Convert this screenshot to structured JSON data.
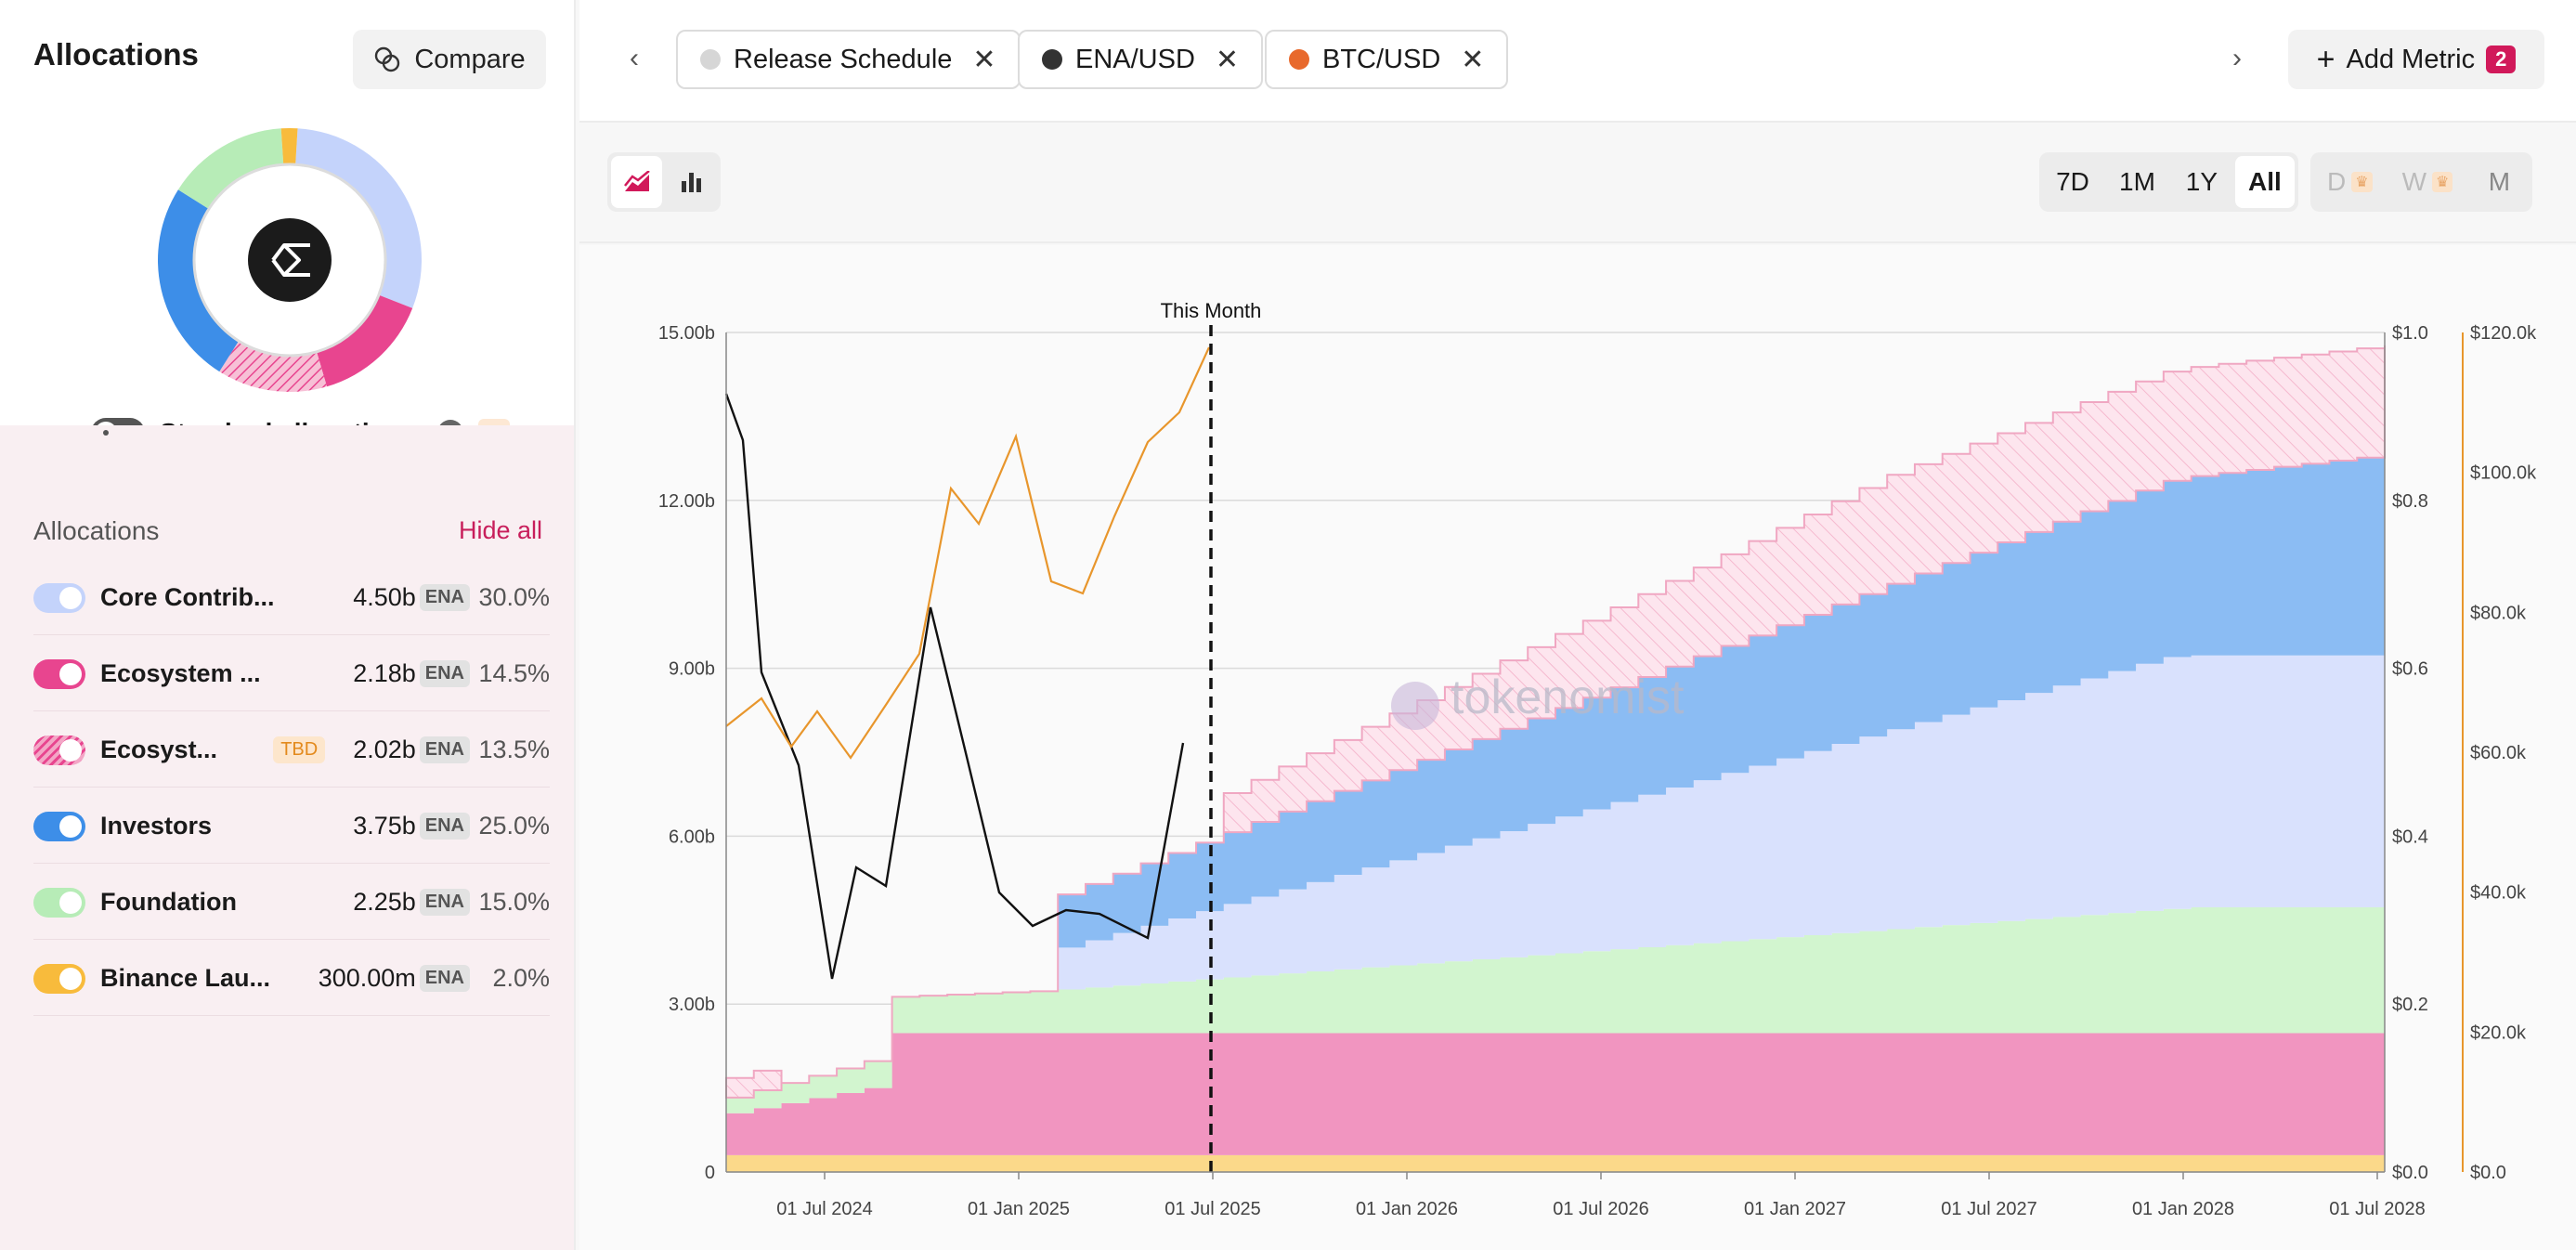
{
  "sidebar": {
    "title": "Allocations",
    "compare_label": "Compare",
    "standard_allocations_label": "Standard allocations",
    "list_title": "Allocations",
    "hide_all_label": "Hide all",
    "items": [
      {
        "name": "Core Contrib...",
        "amount": "4.50b",
        "unit": "ENA",
        "pct": "30.0%",
        "color": "#c4d3fb",
        "tbd": ""
      },
      {
        "name": "Ecosystem ...",
        "amount": "2.18b",
        "unit": "ENA",
        "pct": "14.5%",
        "color": "#e8458f",
        "tbd": ""
      },
      {
        "name": "Ecosyst...",
        "amount": "2.02b",
        "unit": "ENA",
        "pct": "13.5%",
        "color": "#f3a6c6",
        "tbd": "TBD"
      },
      {
        "name": "Investors",
        "amount": "3.75b",
        "unit": "ENA",
        "pct": "25.0%",
        "color": "#3d8ee8",
        "tbd": ""
      },
      {
        "name": "Foundation",
        "amount": "2.25b",
        "unit": "ENA",
        "pct": "15.0%",
        "color": "#b7ecb7",
        "tbd": ""
      },
      {
        "name": "Binance Lau...",
        "amount": "300.00m",
        "unit": "ENA",
        "pct": "2.0%",
        "color": "#f8bb3c",
        "tbd": ""
      }
    ]
  },
  "topbar": {
    "chips": [
      {
        "label": "Release Schedule",
        "color": "#d6d6d6"
      },
      {
        "label": "ENA/USD",
        "color": "#333333"
      },
      {
        "label": "BTC/USD",
        "color": "#e8692c"
      }
    ],
    "add_metric_label": "Add Metric",
    "add_metric_count": "2"
  },
  "toolbar": {
    "ranges": [
      "7D",
      "1M",
      "1Y",
      "All"
    ],
    "active_range": "All",
    "granularity": [
      "D",
      "W",
      "M"
    ]
  },
  "chart_data": {
    "type": "area",
    "annotation": "This Month",
    "watermark": "tokenomist",
    "x_ticks": [
      "01 Jul 2024",
      "01 Jan 2025",
      "01 Jul 2025",
      "01 Jan 2026",
      "01 Jul 2026",
      "01 Jan 2027",
      "01 Jul 2027",
      "01 Jan 2028",
      "01 Jul 2028"
    ],
    "y_left_ticks": [
      "0",
      "3.00b",
      "6.00b",
      "9.00b",
      "12.00b",
      "15.00b"
    ],
    "y_right1_ticks": [
      "$0.0",
      "$0.2",
      "$0.4",
      "$0.6",
      "$0.8",
      "$1.0"
    ],
    "y_right2_ticks": [
      "$0.0",
      "$20.0k",
      "$40.0k",
      "$60.0k",
      "$80.0k",
      "$100.0k",
      "$120.0k"
    ],
    "series_stack": [
      {
        "name": "Binance Launchpool",
        "color": "#fbd98a"
      },
      {
        "name": "Ecosystem",
        "color": "#f195c0"
      },
      {
        "name": "Foundation",
        "color": "#d2f5cf"
      },
      {
        "name": "Core Contributors",
        "color": "#d9e1fd"
      },
      {
        "name": "Investors",
        "color": "#8bbcf3"
      },
      {
        "name": "Ecosystem (TBD)",
        "color": "#fbdce6"
      }
    ],
    "lines": [
      {
        "name": "ENA/USD",
        "color": "#111111"
      },
      {
        "name": "BTC/USD",
        "color": "#e8962c"
      }
    ]
  }
}
